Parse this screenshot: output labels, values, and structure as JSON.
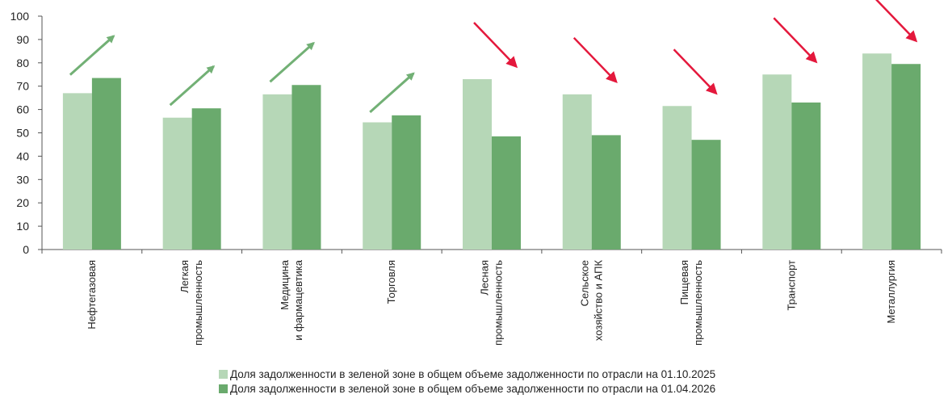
{
  "chart_data": {
    "type": "bar",
    "title": "",
    "xlabel": "",
    "ylabel": "",
    "ylim": [
      0,
      100
    ],
    "y_ticks": [
      0,
      10,
      20,
      30,
      40,
      50,
      60,
      70,
      80,
      90,
      100
    ],
    "grid": false,
    "legend_position": "bottom-center",
    "categories": [
      [
        "Нефтегазовая"
      ],
      [
        "Легкая",
        "промышленность"
      ],
      [
        "Медицина",
        "и фармацевтика"
      ],
      [
        "Торговля"
      ],
      [
        "Лесная",
        "промышленность"
      ],
      [
        "Сельское",
        "хозяйство и АПК"
      ],
      [
        "Пищевая",
        "промышленность"
      ],
      [
        "Транспорт"
      ],
      [
        "Металлургия"
      ]
    ],
    "series": [
      {
        "name": "Доля задолженности в зеленой зоне в общем объеме задолженности по отрасли на 01.10.2025",
        "color": "#b6d7b7",
        "values": [
          67,
          56.5,
          66.5,
          54.5,
          73,
          66.5,
          61.5,
          75,
          84
        ]
      },
      {
        "name": "Доля задолженности в зеленой зоне в общем объеме задолженности по отрасли на 01.04.2026",
        "color": "#6aaa6d",
        "values": [
          73.5,
          60.5,
          70.5,
          57.5,
          48.5,
          49,
          47,
          63,
          79.5
        ]
      }
    ],
    "trend_arrows": [
      "up",
      "up",
      "up",
      "up",
      "down",
      "down",
      "down",
      "down",
      "down"
    ],
    "arrow_colors": {
      "up": "#72b075",
      "down": "#e4183c"
    }
  }
}
